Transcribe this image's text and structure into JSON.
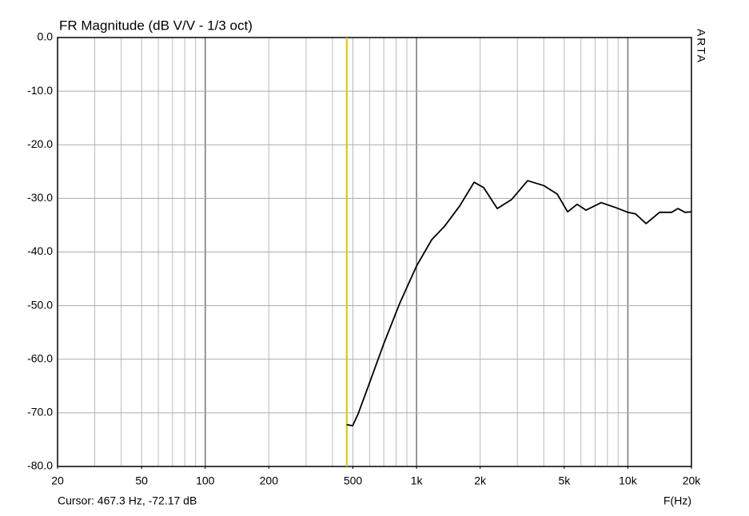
{
  "chart_data": {
    "type": "line",
    "title": "FR Magnitude (dB V/V - 1/3 oct)",
    "x_label": "F(Hz)",
    "side_label": "ARTA",
    "cursor_text": "Cursor: 467.3 Hz, -72.17 dB",
    "cursor_x": 467.3,
    "cursor_color": "#d4c800",
    "log_x": true,
    "grid": true,
    "xlim": [
      20,
      20000
    ],
    "ylim": [
      -80,
      0
    ],
    "xticks": [
      20,
      50,
      100,
      200,
      500,
      {
        "value": 1000,
        "label": "1k"
      },
      {
        "value": 2000,
        "label": "2k"
      },
      {
        "value": 5000,
        "label": "5k"
      },
      {
        "value": 10000,
        "label": "10k"
      },
      {
        "value": 20000,
        "label": "20k"
      }
    ],
    "yticks": [
      {
        "value": 0,
        "label": "0.0"
      },
      {
        "value": -10,
        "label": "-10.0"
      },
      {
        "value": -20,
        "label": "-20.0"
      },
      {
        "value": -30,
        "label": "-30.0"
      },
      {
        "value": -40,
        "label": "-40.0"
      },
      {
        "value": -50,
        "label": "-50.0"
      },
      {
        "value": -60,
        "label": "-60.0"
      },
      {
        "value": -70,
        "label": "-70.0"
      },
      {
        "value": -80,
        "label": "-80.0"
      }
    ],
    "series": [
      {
        "color": "#000000",
        "x": [
          467,
          498,
          529,
          588,
          700,
          832,
          1000,
          1180,
          1356,
          1600,
          1872,
          2078,
          2410,
          2820,
          3356,
          3994,
          4632,
          5188,
          5756,
          6338,
          7480,
          8750,
          10000,
          10878,
          12190,
          14126,
          16100,
          17260,
          18660,
          20000
        ],
        "values": [
          -72.2,
          -72.4,
          -70.2,
          -65.3,
          -57.1,
          -49.6,
          -42.6,
          -37.7,
          -35.2,
          -31.4,
          -27.0,
          -28.0,
          -31.9,
          -30.2,
          -26.7,
          -27.6,
          -29.2,
          -32.5,
          -31.1,
          -32.2,
          -30.8,
          -31.7,
          -32.6,
          -32.9,
          -34.7,
          -32.6,
          -32.6,
          -31.9,
          -32.6,
          -32.5
        ]
      }
    ]
  }
}
